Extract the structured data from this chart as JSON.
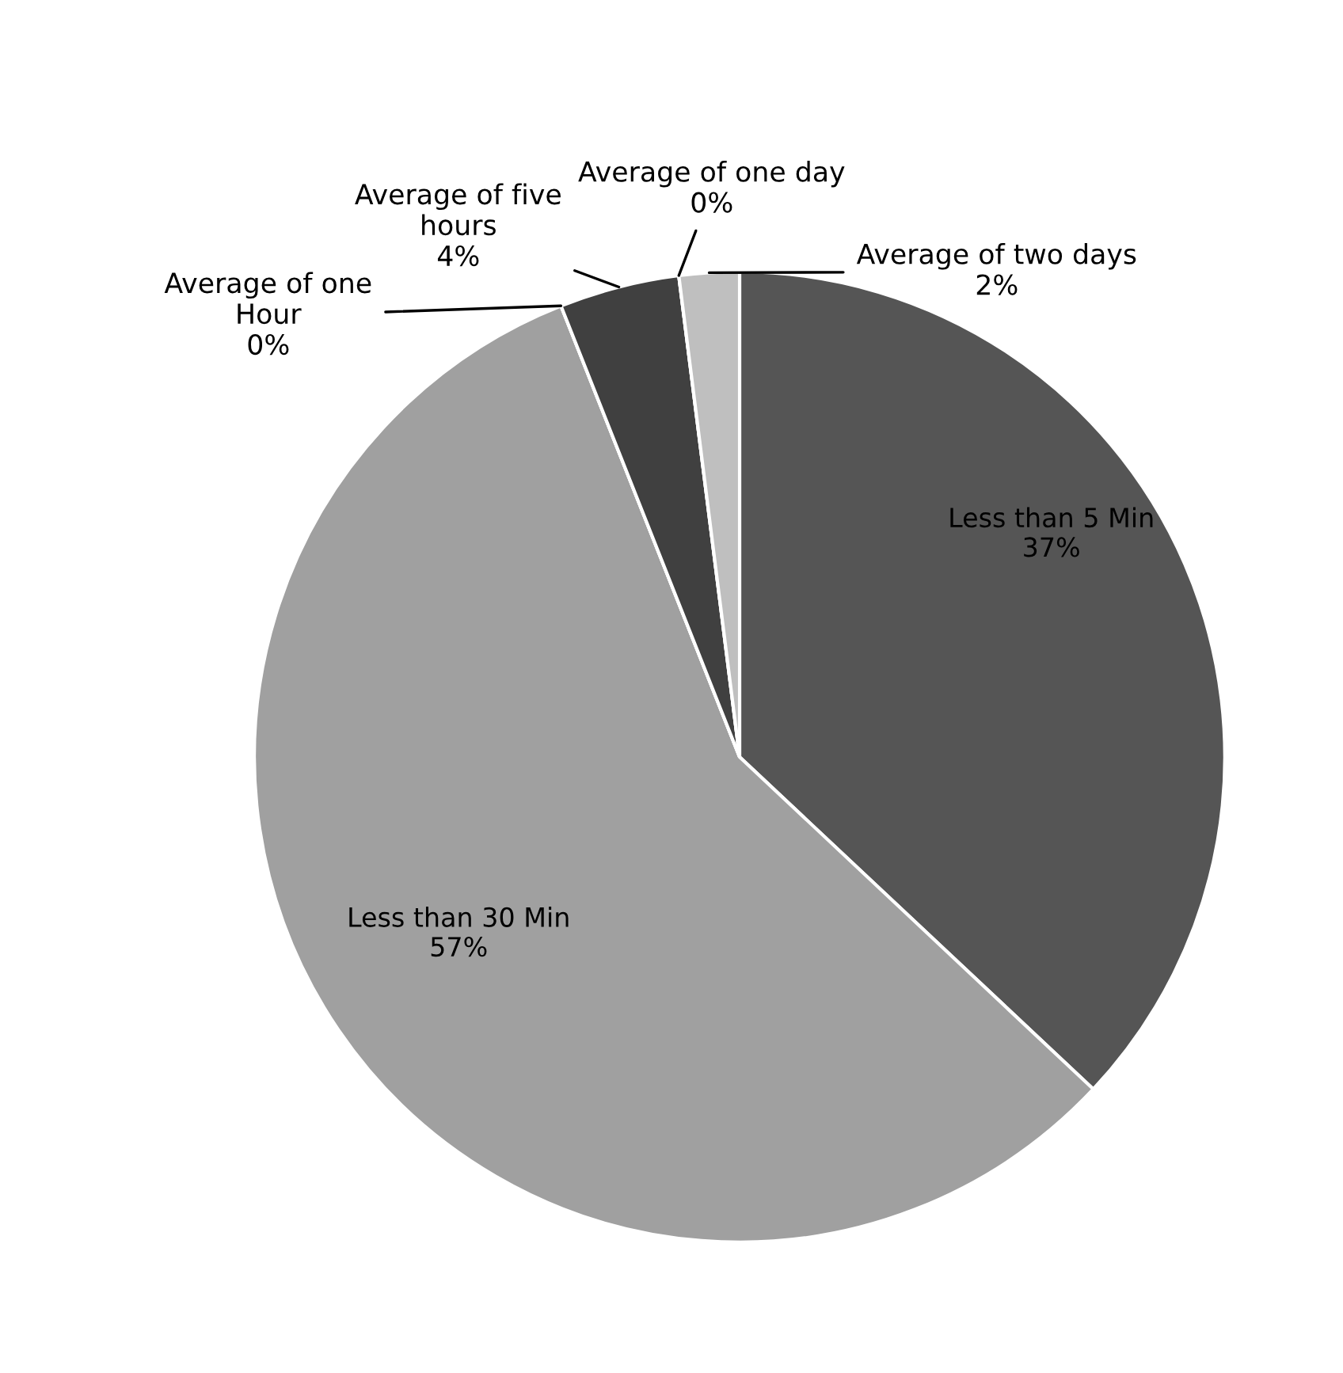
{
  "chart_data": {
    "type": "pie",
    "categories": [
      "Less than 5 Min",
      "Less than 30 Min",
      "Average of one\nHour",
      "Average of five\nhours",
      "Average of one day",
      "Average of two days"
    ],
    "values": [
      37,
      57,
      0,
      4,
      0,
      2
    ],
    "colors": [
      "#555555",
      "#a0a0a0",
      "#7f7f7f",
      "#404040",
      "#d9d9d9",
      "#bfbfbf"
    ],
    "value_labels": [
      "37%",
      "57%",
      "0%",
      "4%",
      "0%",
      "2%"
    ],
    "legend": false
  }
}
